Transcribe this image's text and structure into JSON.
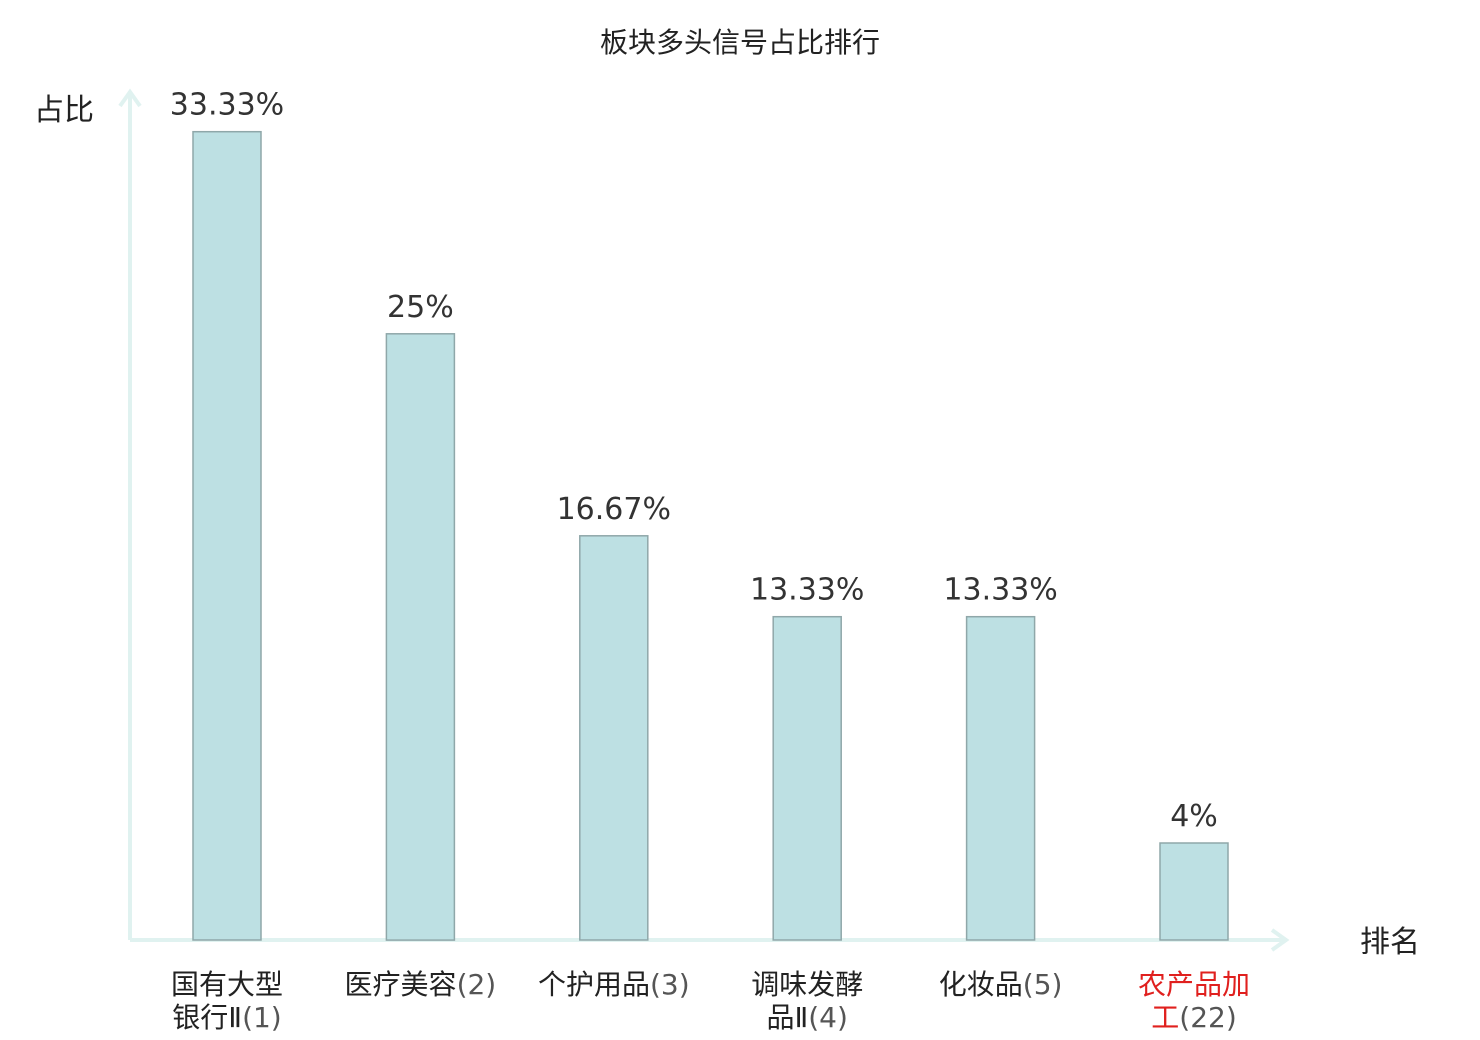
{
  "chart_data": {
    "type": "bar",
    "title": "板块多头信号占比排行",
    "ylabel": "占比",
    "xlabel": "排名",
    "ylim": [
      0,
      35
    ],
    "grid": false,
    "categories": [
      {
        "lines": [
          "国有大型",
          "银行Ⅱ"
        ],
        "rank": "(1)",
        "highlight": false
      },
      {
        "lines": [
          "医疗美容"
        ],
        "rank": "(2)",
        "highlight": false
      },
      {
        "lines": [
          "个护用品"
        ],
        "rank": "(3)",
        "highlight": false
      },
      {
        "lines": [
          "调味发酵",
          "品Ⅱ"
        ],
        "rank": "(4)",
        "highlight": false
      },
      {
        "lines": [
          "化妆品"
        ],
        "rank": "(5)",
        "highlight": false
      },
      {
        "lines": [
          "农产品加",
          "工"
        ],
        "rank": "(22)",
        "highlight": true
      }
    ],
    "values": [
      33.33,
      25,
      16.67,
      13.33,
      13.33,
      4
    ],
    "value_labels": [
      "33.33%",
      "25%",
      "16.67%",
      "13.33%",
      "13.33%",
      "4%"
    ],
    "colors": {
      "bar_fill": "#bde0e3",
      "bar_stroke": "#8fa7a9",
      "axis": "#e0f2f0",
      "highlight_text": "#e0201e",
      "text": "#222222"
    }
  }
}
